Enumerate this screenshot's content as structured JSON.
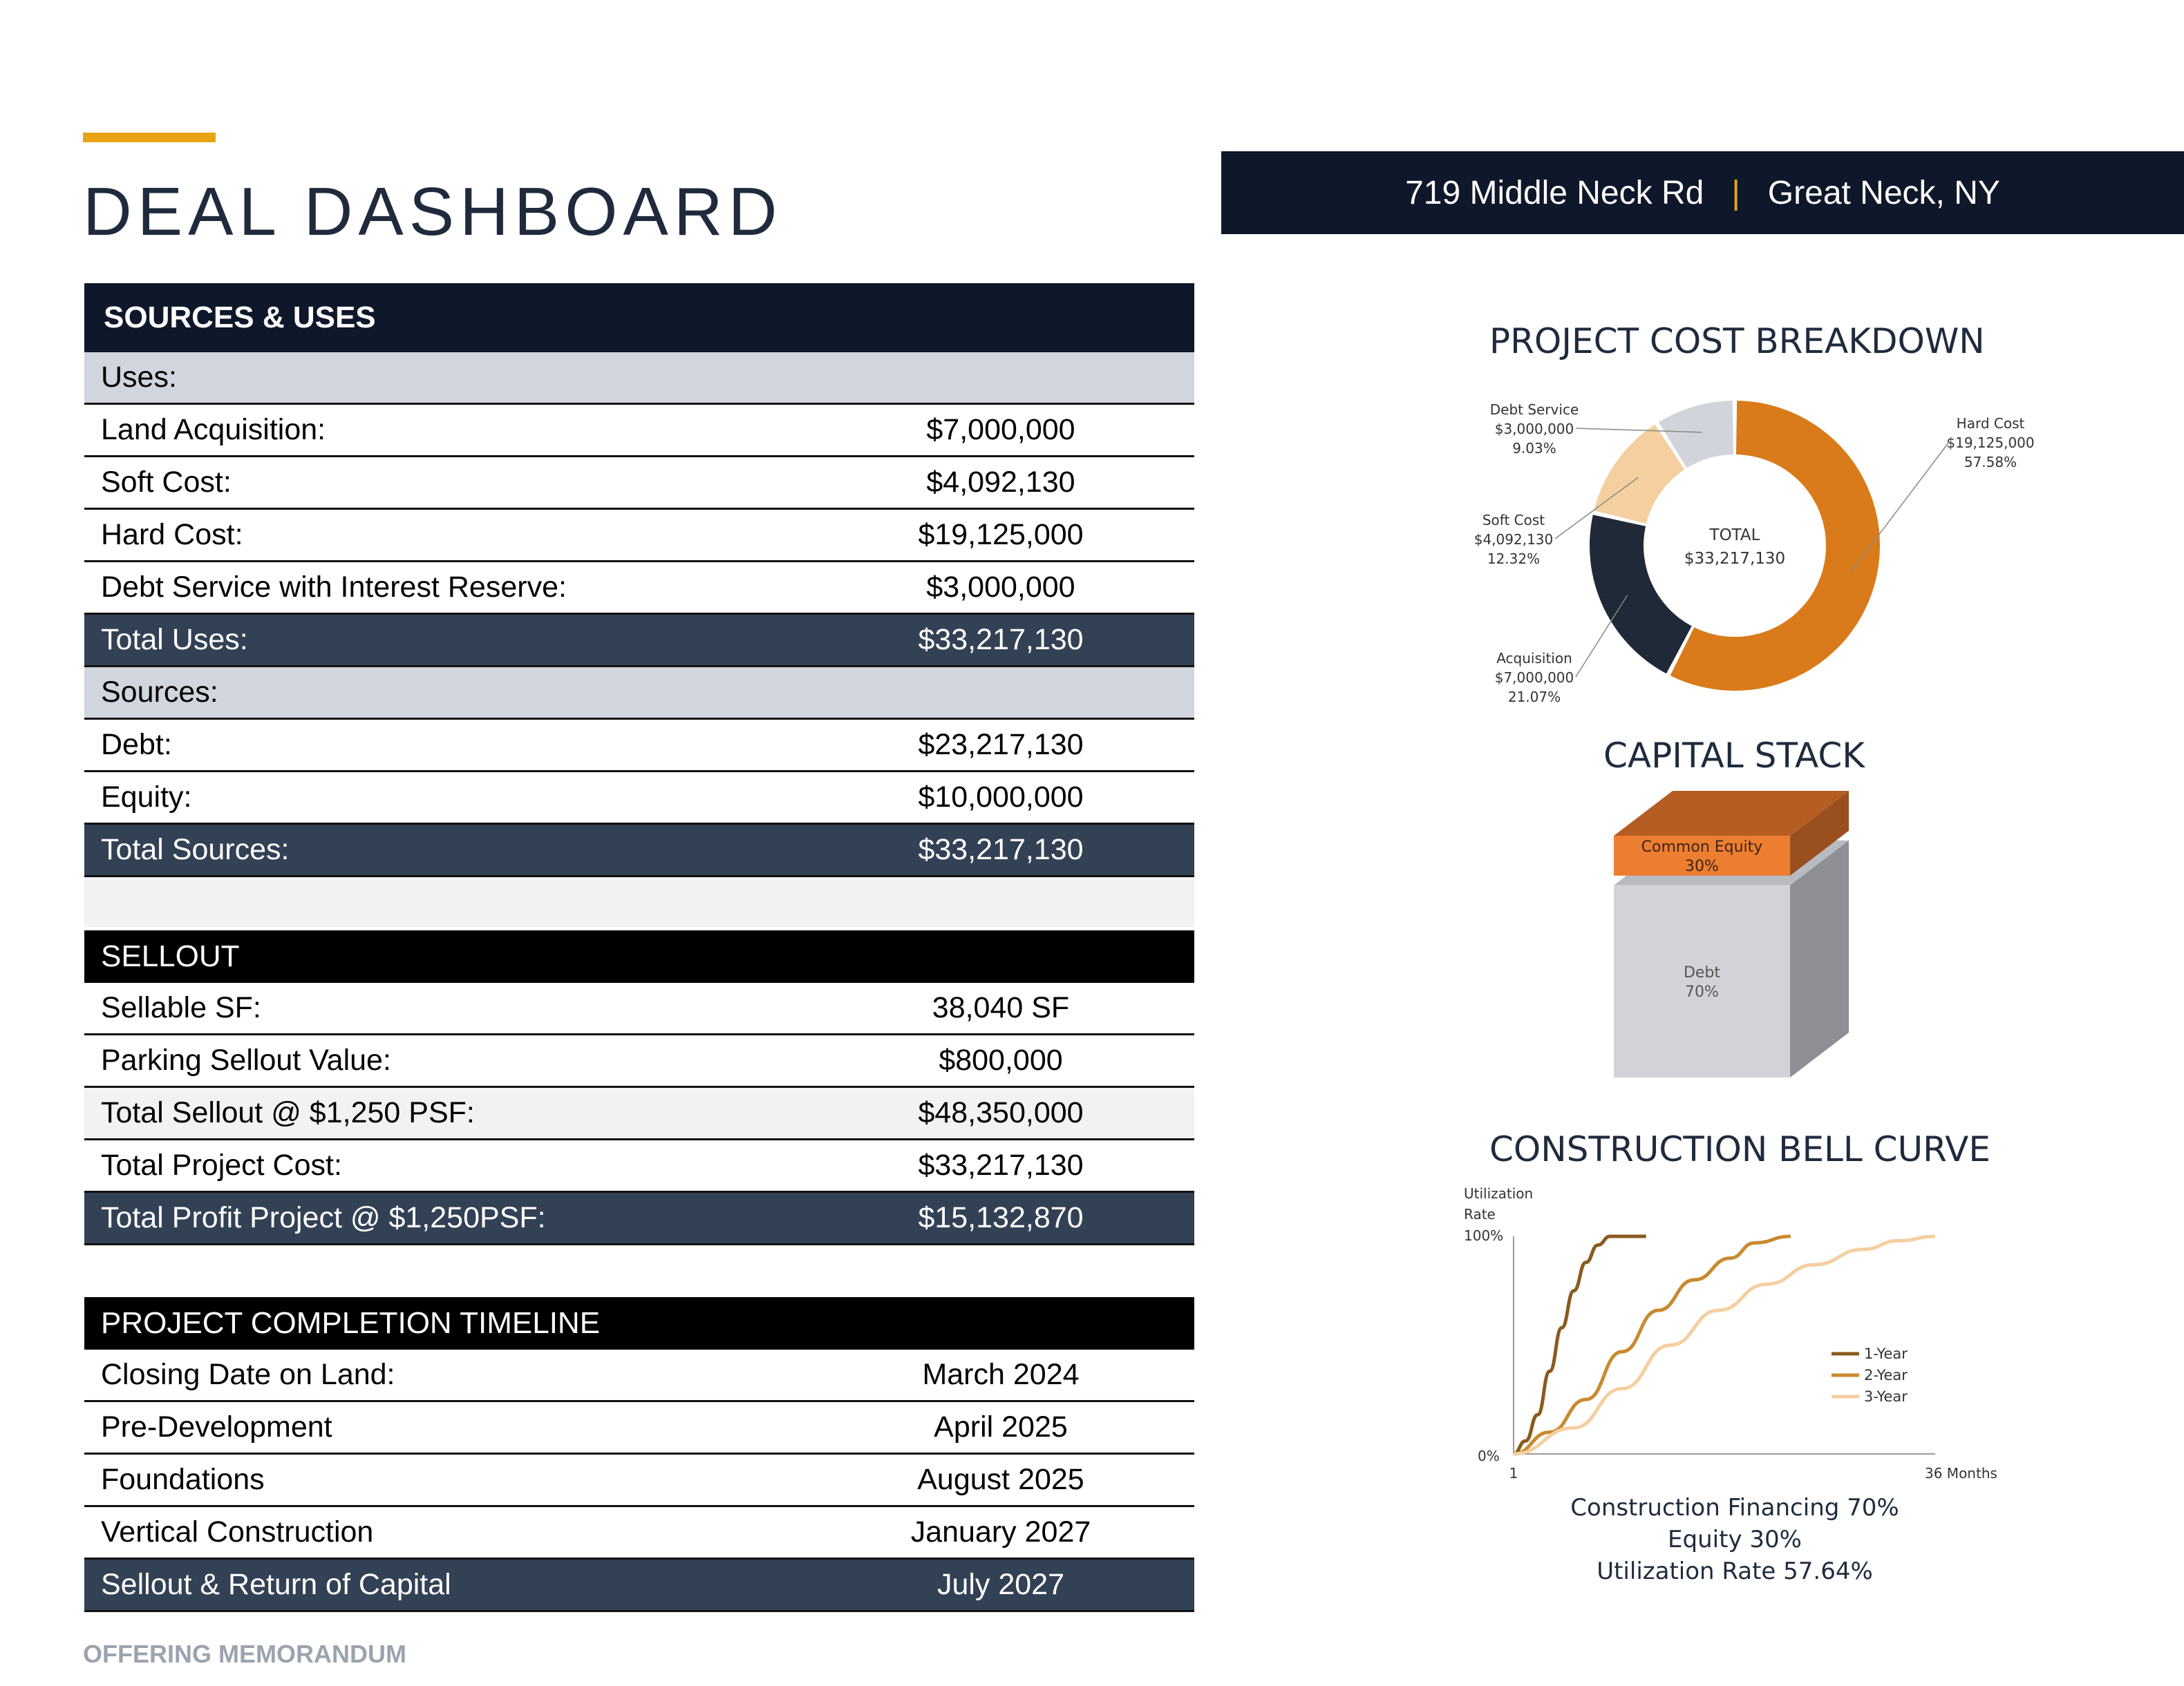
{
  "header": {
    "title": "DEAL DASHBOARD",
    "address_street": "719 Middle Neck Rd",
    "address_separator": "|",
    "address_city": "Great Neck, NY"
  },
  "sources_uses": {
    "title": "SOURCES & USES",
    "uses_label": "Uses:",
    "uses": [
      {
        "label": "Land Acquisition:",
        "value": "$7,000,000"
      },
      {
        "label": "Soft Cost:",
        "value": "$4,092,130"
      },
      {
        "label": "Hard Cost:",
        "value": "$19,125,000"
      },
      {
        "label": "Debt Service with Interest Reserve:",
        "value": "$3,000,000"
      }
    ],
    "total_uses": {
      "label": "Total Uses:",
      "value": "$33,217,130"
    },
    "sources_label": "Sources:",
    "sources": [
      {
        "label": "Debt:",
        "value": "$23,217,130"
      },
      {
        "label": "Equity:",
        "value": "$10,000,000"
      }
    ],
    "total_sources": {
      "label": "Total Sources:",
      "value": "$33,217,130"
    }
  },
  "sellout": {
    "title": "SELLOUT",
    "rows": [
      {
        "label": "Sellable SF:",
        "value": "38,040 SF"
      },
      {
        "label": "Parking Sellout Value:",
        "value": "$800,000"
      },
      {
        "label": "Total Sellout @ $1,250 PSF:",
        "value": "$48,350,000"
      },
      {
        "label": "Total Project Cost:",
        "value": "$33,217,130"
      }
    ],
    "total": {
      "label": "Total Profit Project @ $1,250PSF:",
      "value": "$15,132,870"
    }
  },
  "timeline": {
    "title": "PROJECT COMPLETION TIMELINE",
    "rows": [
      {
        "label": "Closing Date on Land:",
        "value": "March 2024"
      },
      {
        "label": "Pre-Development",
        "value": "April 2025"
      },
      {
        "label": "Foundations",
        "value": "August 2025"
      },
      {
        "label": "Vertical Construction",
        "value": "January 2027"
      }
    ],
    "final": {
      "label": "Sellout & Return of Capital",
      "value": "July 2027"
    }
  },
  "footer": "OFFERING MEMORANDUM",
  "chart_data": [
    {
      "type": "pie",
      "title": "PROJECT COST BREAKDOWN",
      "center_label": "TOTAL",
      "center_value": "$33,217,130",
      "slices": [
        {
          "name": "Hard Cost",
          "value": 19125000,
          "amount": "$19,125,000",
          "percent": "57.58%",
          "color": "#d97b1a"
        },
        {
          "name": "Acquisition",
          "value": 7000000,
          "amount": "$7,000,000",
          "percent": "21.07%",
          "color": "#1f2937"
        },
        {
          "name": "Soft Cost",
          "value": 4092130,
          "amount": "$4,092,130",
          "percent": "12.32%",
          "color": "#f5cfa0"
        },
        {
          "name": "Debt Service",
          "value": 3000000,
          "amount": "$3,000,000",
          "percent": "9.03%",
          "color": "#d1d5db"
        }
      ]
    },
    {
      "type": "bar",
      "title": "CAPITAL STACK",
      "segments": [
        {
          "name": "Common Equity",
          "percent": "30%",
          "value": 30,
          "color": "#ed7d31"
        },
        {
          "name": "Debt",
          "percent": "70%",
          "value": 70,
          "color": "#d1d3d8"
        }
      ]
    },
    {
      "type": "line",
      "title": "CONSTRUCTION BELL CURVE",
      "ylabel": "Utilization Rate",
      "ytick_top": "100%",
      "ytick_bottom": "0%",
      "xtick_start": "1",
      "xtick_end": "36 Months",
      "xlim": [
        1,
        36
      ],
      "ylim": [
        0,
        100
      ],
      "series": [
        {
          "name": "1-Year",
          "color": "#8a5a1e",
          "points": [
            [
              1,
              0
            ],
            [
              2,
              6
            ],
            [
              3,
              18
            ],
            [
              4,
              38
            ],
            [
              5,
              58
            ],
            [
              6,
              75
            ],
            [
              7,
              88
            ],
            [
              8,
              96
            ],
            [
              9,
              100
            ],
            [
              12,
              100
            ]
          ]
        },
        {
          "name": "2-Year",
          "color": "#c98a2e",
          "points": [
            [
              1,
              0
            ],
            [
              4,
              10
            ],
            [
              7,
              25
            ],
            [
              10,
              47
            ],
            [
              13,
              66
            ],
            [
              16,
              80
            ],
            [
              19,
              90
            ],
            [
              21,
              97
            ],
            [
              24,
              100
            ]
          ]
        },
        {
          "name": "3-Year",
          "color": "#f5cfa0",
          "points": [
            [
              1,
              0
            ],
            [
              6,
              12
            ],
            [
              10,
              30
            ],
            [
              14,
              50
            ],
            [
              18,
              66
            ],
            [
              22,
              78
            ],
            [
              26,
              87
            ],
            [
              30,
              94
            ],
            [
              33,
              98
            ],
            [
              36,
              100
            ]
          ]
        }
      ],
      "notes": [
        "Construction Financing 70%",
        "Equity 30%",
        "Utilization Rate 57.64%"
      ]
    }
  ]
}
